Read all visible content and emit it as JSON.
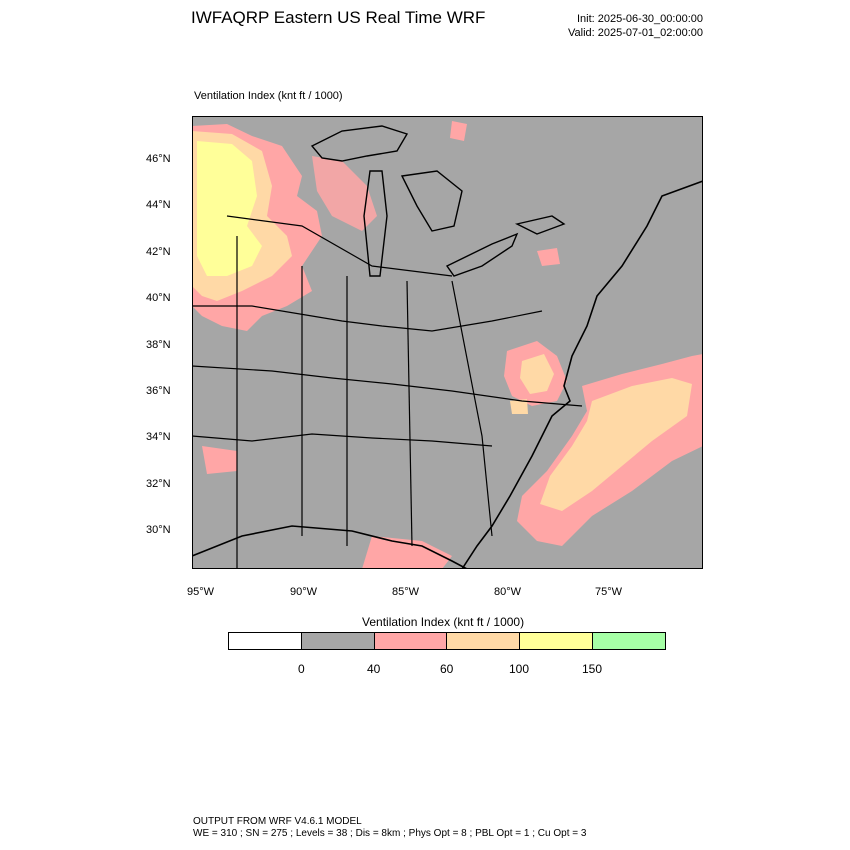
{
  "header": {
    "title": "IWFAQRP Eastern US Real Time WRF",
    "init": "Init: 2025-06-30_00:00:00",
    "valid": "Valid: 2025-07-01_02:00:00"
  },
  "plot": {
    "title": "Ventilation Index   (knt ft / 1000)"
  },
  "map": {
    "lat_labels": [
      "46°N",
      "44°N",
      "42°N",
      "40°N",
      "38°N",
      "36°N",
      "34°N",
      "32°N",
      "30°N"
    ],
    "lon_labels": [
      "95°W",
      "90°W",
      "85°W",
      "80°W",
      "75°W"
    ],
    "colors": {
      "land_fill": "#a6a6a6",
      "water": "#a6a6a6",
      "boundary": "#000000",
      "pink": "#ffa6a6",
      "orange": "#ffd9a6",
      "yellow": "#ffff99"
    }
  },
  "colorbar": {
    "title": "Ventilation Index  (knt ft / 1000)",
    "bins": [
      {
        "color": "#ffffff"
      },
      {
        "color": "#a6a6a6"
      },
      {
        "color": "#ffa6a6"
      },
      {
        "color": "#ffd9a6"
      },
      {
        "color": "#ffff99"
      },
      {
        "color": "#a6ffa6"
      }
    ],
    "labels": [
      "0",
      "40",
      "60",
      "100",
      "150"
    ]
  },
  "footer": {
    "line1": "OUTPUT FROM WRF V4.6.1 MODEL",
    "line2": "WE = 310 ; SN = 275 ; Levels = 38 ; Dis = 8km ; Phys Opt = 8 ; PBL Opt = 1 ; Cu Opt = 3"
  }
}
